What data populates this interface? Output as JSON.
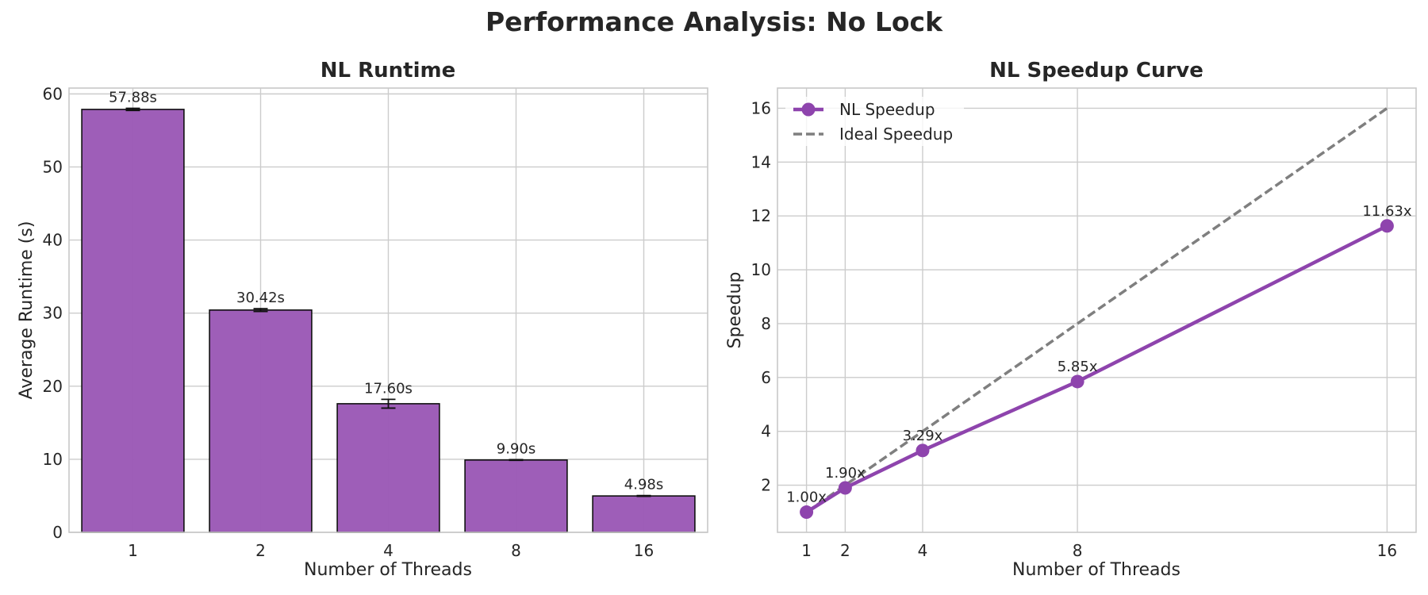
{
  "title": "Performance Analysis: No Lock",
  "chart_data": [
    {
      "type": "bar",
      "title": "NL Runtime",
      "xlabel": "Number of Threads",
      "ylabel": "Average Runtime (s)",
      "categories": [
        "1",
        "2",
        "4",
        "8",
        "16"
      ],
      "values": [
        57.88,
        30.42,
        17.6,
        9.9,
        4.98
      ],
      "errors": [
        0.15,
        0.2,
        0.6,
        0.05,
        0.05
      ],
      "value_labels": [
        "57.88s",
        "30.42s",
        "17.60s",
        "9.90s",
        "4.98s"
      ],
      "ylim": [
        0,
        60.8
      ],
      "yticks": [
        0,
        10,
        20,
        30,
        40,
        50,
        60
      ],
      "bar_color": "#9b59b6",
      "grid": true
    },
    {
      "type": "line",
      "title": "NL Speedup Curve",
      "xlabel": "Number of Threads",
      "ylabel": "Speedup",
      "x": [
        1,
        2,
        4,
        8,
        16
      ],
      "xlim": [
        0.25,
        16.75
      ],
      "ylim": [
        0.25,
        16.75
      ],
      "xticks": [
        1,
        2,
        4,
        8,
        16
      ],
      "yticks": [
        2,
        4,
        6,
        8,
        10,
        12,
        14,
        16
      ],
      "legend": "top-left",
      "grid": true,
      "series": [
        {
          "name": "NL Speedup",
          "values": [
            1.0,
            1.9,
            3.29,
            5.85,
            11.63
          ],
          "labels": [
            "1.00x",
            "1.90x",
            "3.29x",
            "5.85x",
            "11.63x"
          ],
          "color": "#8e44ad",
          "style": "solid-markers"
        },
        {
          "name": "Ideal Speedup",
          "values": [
            1,
            2,
            4,
            8,
            16
          ],
          "color": "#7f7f7f",
          "style": "dashed"
        }
      ]
    }
  ]
}
